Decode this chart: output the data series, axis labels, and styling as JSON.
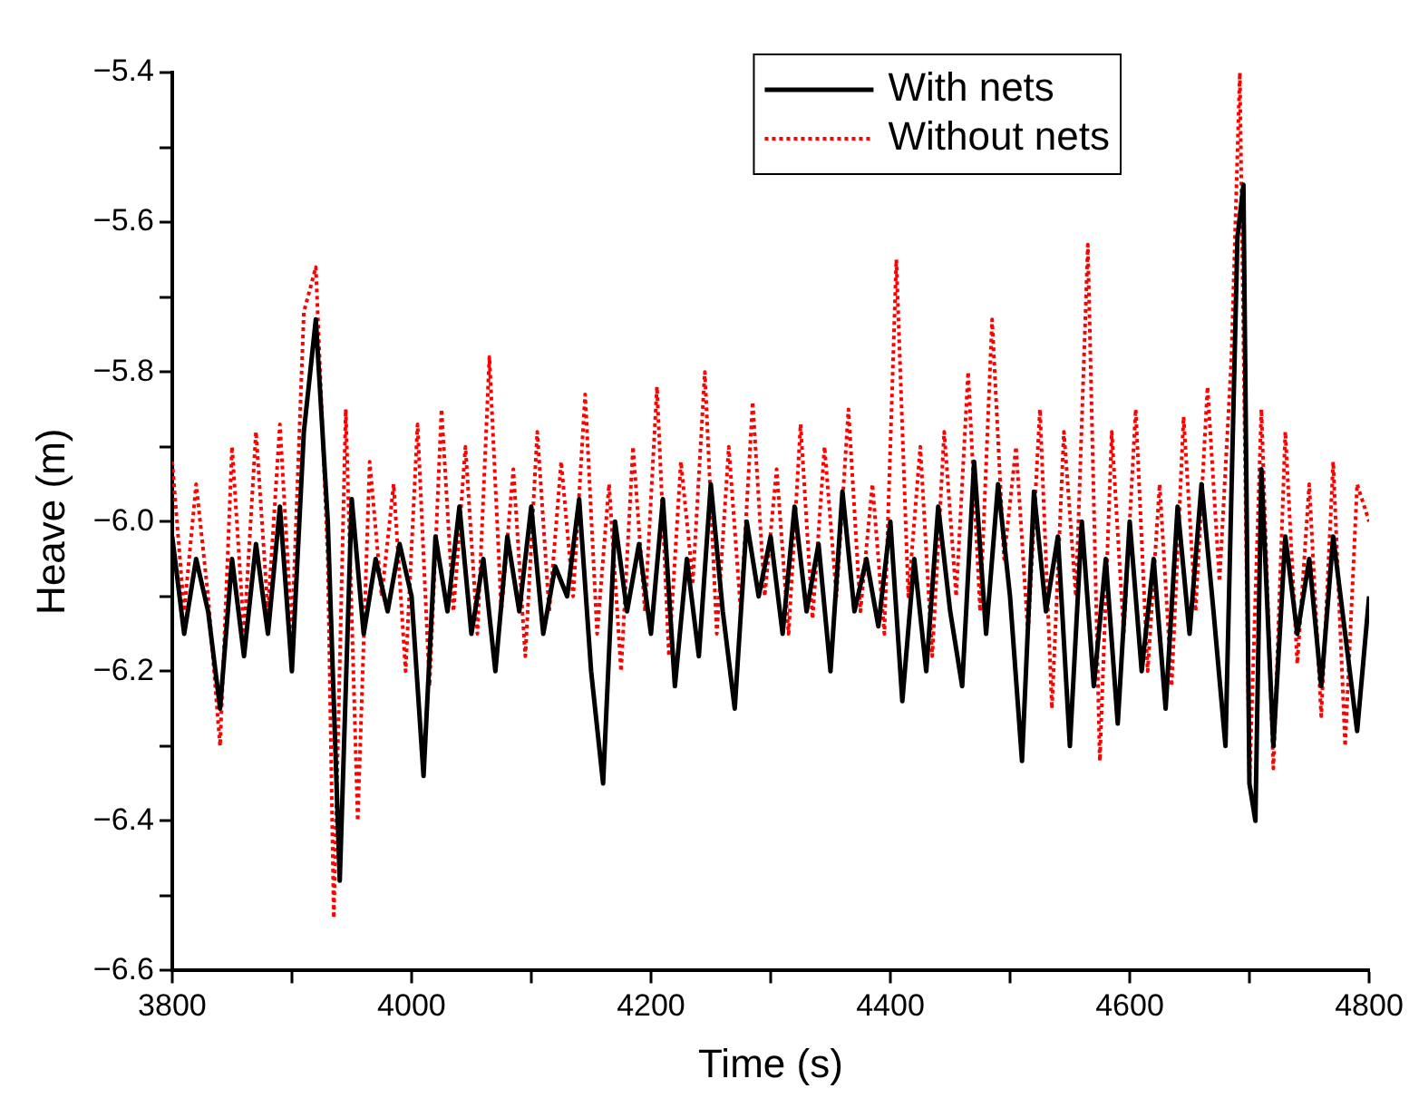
{
  "chart_data": {
    "type": "line",
    "xlabel": "Time (s)",
    "ylabel": "Heave (m)",
    "xlim": [
      3800,
      4800
    ],
    "xticks": [
      3800,
      {
        "value": 3900,
        "label": null
      },
      4000,
      {
        "value": 4100,
        "label": null
      },
      4200,
      {
        "value": 4300,
        "label": null
      },
      4400,
      {
        "value": 4500,
        "label": null
      },
      4600,
      {
        "value": 4700,
        "label": null
      },
      4800
    ],
    "ylim": [
      -6.6,
      -5.4
    ],
    "yticks": [
      {
        "value": -6.6,
        "label": "−6.6"
      },
      {
        "value": -6.5,
        "label": null
      },
      {
        "value": -6.4,
        "label": "−6.4"
      },
      {
        "value": -6.3,
        "label": null
      },
      {
        "value": -6.2,
        "label": "−6.2"
      },
      {
        "value": -6.1,
        "label": null
      },
      {
        "value": -6.0,
        "label": "−6.0"
      },
      {
        "value": -5.9,
        "label": null
      },
      {
        "value": -5.8,
        "label": "−5.8"
      },
      {
        "value": -5.7,
        "label": null
      },
      {
        "value": -5.6,
        "label": "−5.6"
      },
      {
        "value": -5.5,
        "label": null
      },
      {
        "value": -5.4,
        "label": "−5.4"
      }
    ],
    "grid": false,
    "legend": "top right",
    "marker": "none",
    "series": [
      {
        "name": "With nets",
        "color": "#000000",
        "line_style": "solid",
        "x": [
          3800,
          3810,
          3820,
          3830,
          3840,
          3850,
          3860,
          3870,
          3880,
          3890,
          3900,
          3910,
          3920,
          3930,
          3940,
          3950,
          3960,
          3970,
          3980,
          3990,
          4000,
          4010,
          4020,
          4030,
          4040,
          4050,
          4060,
          4070,
          4080,
          4090,
          4100,
          4110,
          4120,
          4130,
          4140,
          4150,
          4160,
          4170,
          4180,
          4190,
          4200,
          4210,
          4220,
          4230,
          4240,
          4250,
          4260,
          4270,
          4280,
          4290,
          4300,
          4310,
          4320,
          4330,
          4340,
          4350,
          4360,
          4370,
          4380,
          4390,
          4400,
          4410,
          4420,
          4430,
          4440,
          4450,
          4460,
          4470,
          4480,
          4490,
          4500,
          4510,
          4520,
          4530,
          4540,
          4550,
          4560,
          4570,
          4580,
          4590,
          4600,
          4610,
          4620,
          4630,
          4640,
          4650,
          4660,
          4670,
          4680,
          4690,
          4695,
          4700,
          4705,
          4710,
          4720,
          4730,
          4740,
          4750,
          4760,
          4770,
          4780,
          4790,
          4800
        ],
        "values": [
          -6.02,
          -6.15,
          -6.05,
          -6.12,
          -6.25,
          -6.05,
          -6.18,
          -6.03,
          -6.15,
          -5.98,
          -6.2,
          -5.88,
          -5.73,
          -6.0,
          -6.48,
          -5.97,
          -6.15,
          -6.05,
          -6.12,
          -6.03,
          -6.1,
          -6.34,
          -6.02,
          -6.12,
          -5.98,
          -6.15,
          -6.05,
          -6.2,
          -6.02,
          -6.12,
          -5.98,
          -6.15,
          -6.06,
          -6.1,
          -5.97,
          -6.2,
          -6.35,
          -6.0,
          -6.12,
          -6.03,
          -6.15,
          -5.97,
          -6.22,
          -6.05,
          -6.18,
          -5.95,
          -6.12,
          -6.25,
          -6.0,
          -6.1,
          -6.02,
          -6.15,
          -5.98,
          -6.12,
          -6.03,
          -6.2,
          -5.96,
          -6.12,
          -6.05,
          -6.14,
          -6.0,
          -6.24,
          -6.05,
          -6.2,
          -5.98,
          -6.12,
          -6.22,
          -5.92,
          -6.15,
          -5.95,
          -6.1,
          -6.32,
          -5.96,
          -6.12,
          -6.02,
          -6.3,
          -6.0,
          -6.22,
          -6.05,
          -6.27,
          -6.0,
          -6.2,
          -6.05,
          -6.25,
          -5.98,
          -6.15,
          -5.95,
          -6.12,
          -6.3,
          -5.62,
          -5.55,
          -6.35,
          -6.4,
          -5.93,
          -6.3,
          -6.02,
          -6.15,
          -6.05,
          -6.22,
          -6.02,
          -6.15,
          -6.28,
          -6.1
        ]
      },
      {
        "name": "Without nets",
        "color": "#ff0000",
        "line_style": "dotted",
        "x": [
          3800,
          3810,
          3820,
          3830,
          3840,
          3850,
          3860,
          3870,
          3880,
          3890,
          3900,
          3910,
          3920,
          3930,
          3935,
          3945,
          3955,
          3965,
          3975,
          3985,
          3995,
          4005,
          4015,
          4025,
          4035,
          4045,
          4055,
          4065,
          4075,
          4085,
          4095,
          4105,
          4115,
          4125,
          4135,
          4145,
          4155,
          4165,
          4175,
          4185,
          4195,
          4205,
          4215,
          4225,
          4235,
          4245,
          4255,
          4265,
          4275,
          4285,
          4295,
          4305,
          4315,
          4325,
          4335,
          4345,
          4355,
          4365,
          4375,
          4385,
          4395,
          4405,
          4415,
          4425,
          4435,
          4445,
          4455,
          4465,
          4475,
          4485,
          4495,
          4505,
          4515,
          4525,
          4535,
          4545,
          4555,
          4565,
          4575,
          4585,
          4595,
          4605,
          4615,
          4625,
          4635,
          4645,
          4655,
          4665,
          4675,
          4685,
          4692,
          4700,
          4710,
          4720,
          4730,
          4740,
          4750,
          4760,
          4770,
          4780,
          4790,
          4800
        ],
        "values": [
          -5.92,
          -6.12,
          -5.95,
          -6.1,
          -6.3,
          -5.9,
          -6.15,
          -5.88,
          -6.12,
          -5.87,
          -6.15,
          -5.72,
          -5.66,
          -6.05,
          -6.53,
          -5.85,
          -6.4,
          -5.92,
          -6.1,
          -5.95,
          -6.2,
          -5.87,
          -6.22,
          -5.85,
          -6.12,
          -5.9,
          -6.15,
          -5.78,
          -6.12,
          -5.93,
          -6.18,
          -5.88,
          -6.12,
          -5.92,
          -6.1,
          -5.83,
          -6.15,
          -5.95,
          -6.2,
          -5.9,
          -6.12,
          -5.82,
          -6.18,
          -5.92,
          -6.08,
          -5.8,
          -6.15,
          -5.9,
          -6.12,
          -5.84,
          -6.1,
          -5.93,
          -6.15,
          -5.87,
          -6.13,
          -5.9,
          -6.1,
          -5.85,
          -6.12,
          -5.95,
          -6.15,
          -5.65,
          -6.1,
          -5.9,
          -6.18,
          -5.88,
          -6.1,
          -5.8,
          -6.12,
          -5.73,
          -6.05,
          -5.9,
          -6.15,
          -5.85,
          -6.25,
          -5.88,
          -6.1,
          -5.63,
          -6.32,
          -5.88,
          -6.15,
          -5.85,
          -6.2,
          -5.95,
          -6.22,
          -5.86,
          -6.12,
          -5.82,
          -6.08,
          -5.78,
          -5.4,
          -6.35,
          -5.85,
          -6.33,
          -5.88,
          -6.19,
          -5.95,
          -6.26,
          -5.92,
          -6.3,
          -5.95,
          -6.0
        ]
      }
    ]
  }
}
